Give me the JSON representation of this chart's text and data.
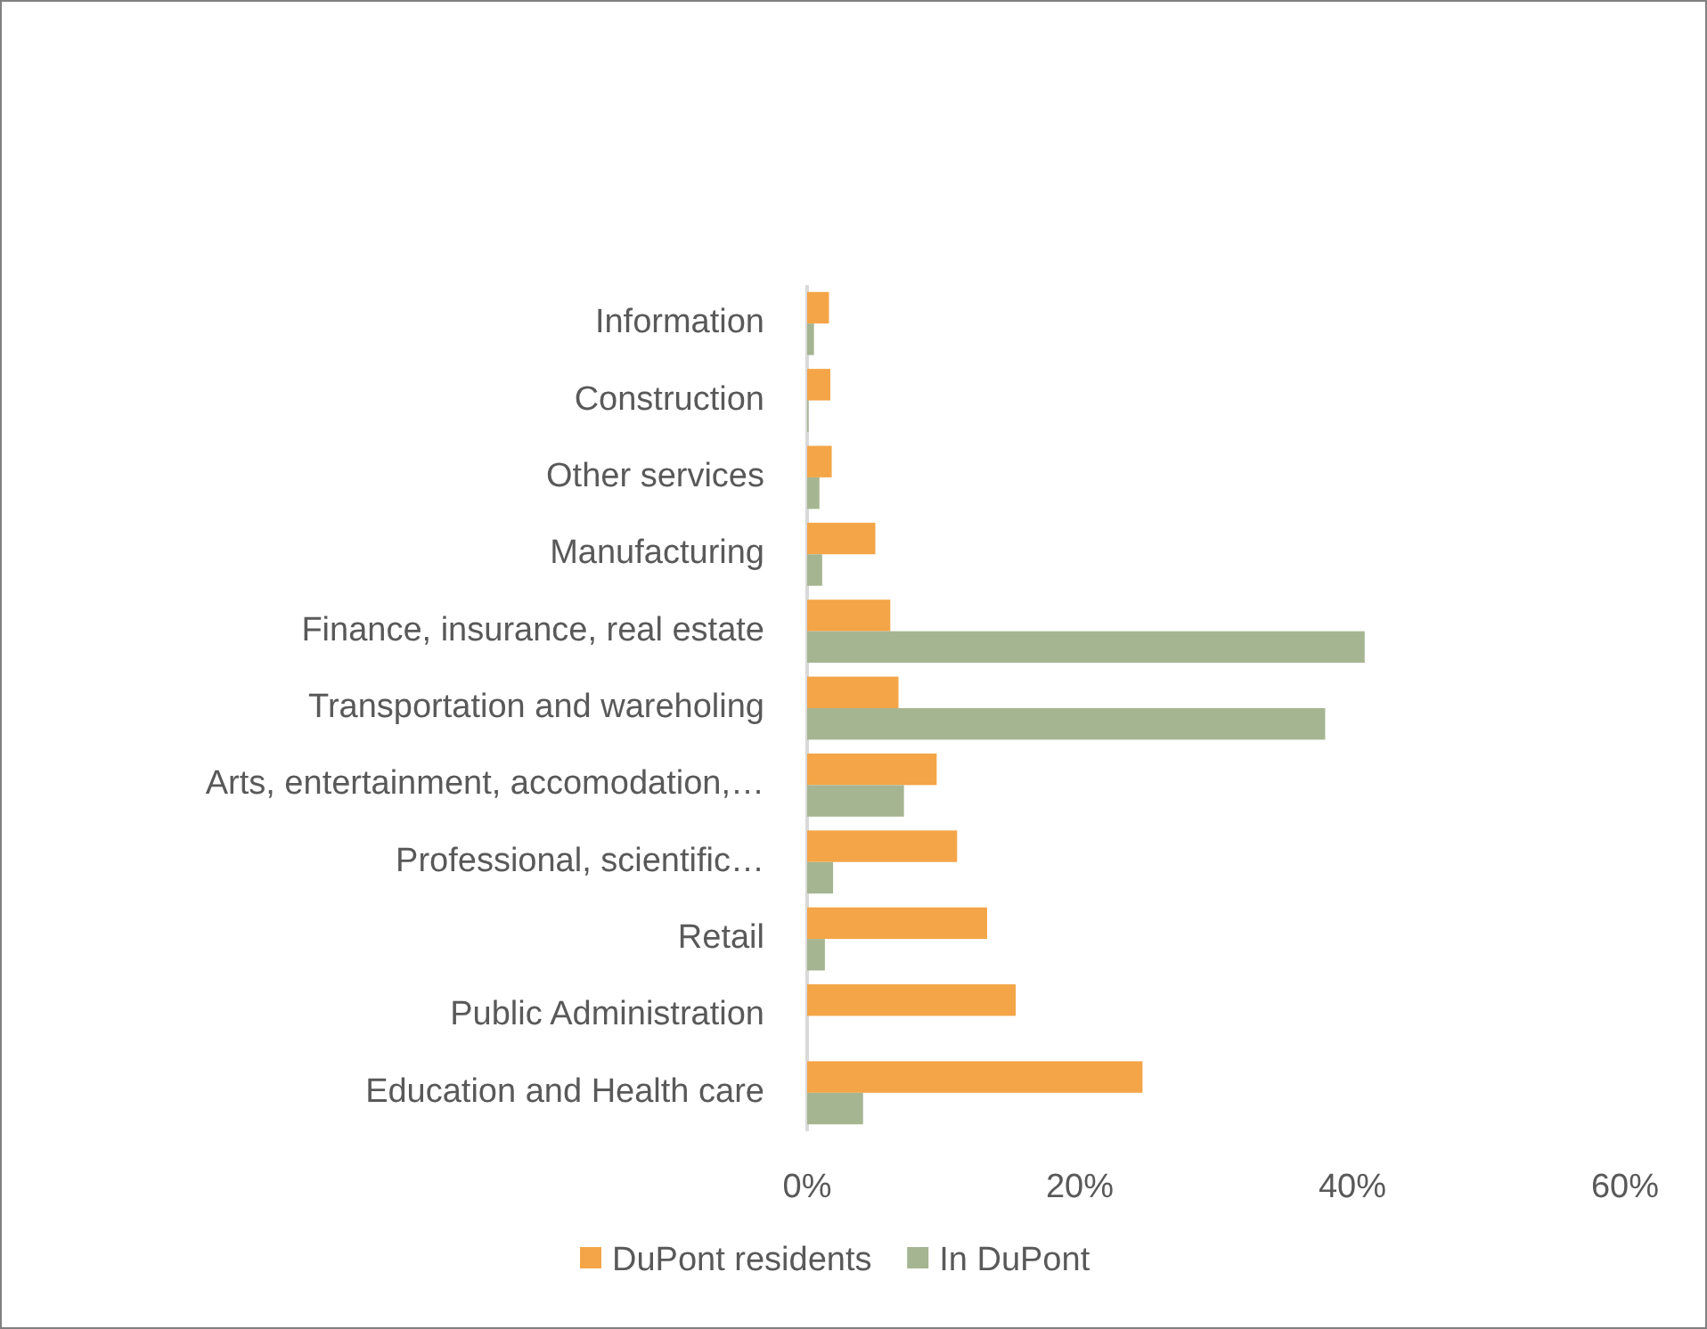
{
  "chart_data": {
    "type": "bar",
    "orientation": "horizontal",
    "categories": [
      "Information",
      "Construction",
      "Other services",
      "Manufacturing",
      "Finance, insurance, real estate",
      "Transportation and wareholing",
      "Arts, entertainment, accomodation,…",
      "Professional, scientific…",
      "Retail",
      "Public Administration",
      "Education and Health care"
    ],
    "series": [
      {
        "name": "DuPont residents",
        "color": "#f4a547",
        "values": [
          1.6,
          1.7,
          1.8,
          5.0,
          6.1,
          6.7,
          9.5,
          11.0,
          13.2,
          15.3,
          24.6
        ]
      },
      {
        "name": "In DuPont",
        "color": "#a6b591",
        "values": [
          0.5,
          0.1,
          0.9,
          1.1,
          40.9,
          38.0,
          7.1,
          1.9,
          1.3,
          0,
          4.1
        ]
      }
    ],
    "xlim": [
      0,
      60
    ],
    "xticks": [
      {
        "value": 0,
        "label": "0%"
      },
      {
        "value": 20,
        "label": "20%"
      },
      {
        "value": 40,
        "label": "40%"
      },
      {
        "value": 60,
        "label": "60%"
      }
    ],
    "grid": false,
    "legend": "bottom"
  }
}
